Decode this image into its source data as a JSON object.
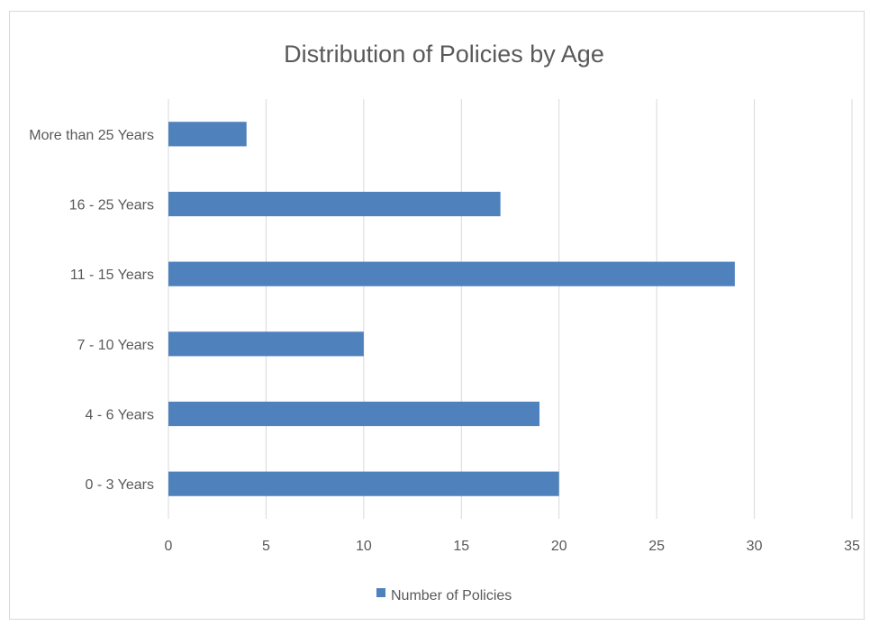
{
  "chart_data": {
    "type": "bar",
    "orientation": "horizontal",
    "title": "Distribution of Policies by Age",
    "xlabel": "",
    "ylabel": "",
    "categories": [
      "0 - 3 Years",
      "4 - 6 Years",
      "7 - 10 Years",
      "11 - 15 Years",
      "16 - 25 Years",
      "More than 25 Years"
    ],
    "series": [
      {
        "name": "Number of Policies",
        "values": [
          20,
          19,
          10,
          29,
          17,
          4
        ],
        "color": "#4f81bd"
      }
    ],
    "xlim": [
      0,
      35
    ],
    "x_ticks": [
      "0",
      "5",
      "10",
      "15",
      "20",
      "25",
      "30",
      "35"
    ],
    "grid": true,
    "legend_position": "bottom"
  }
}
